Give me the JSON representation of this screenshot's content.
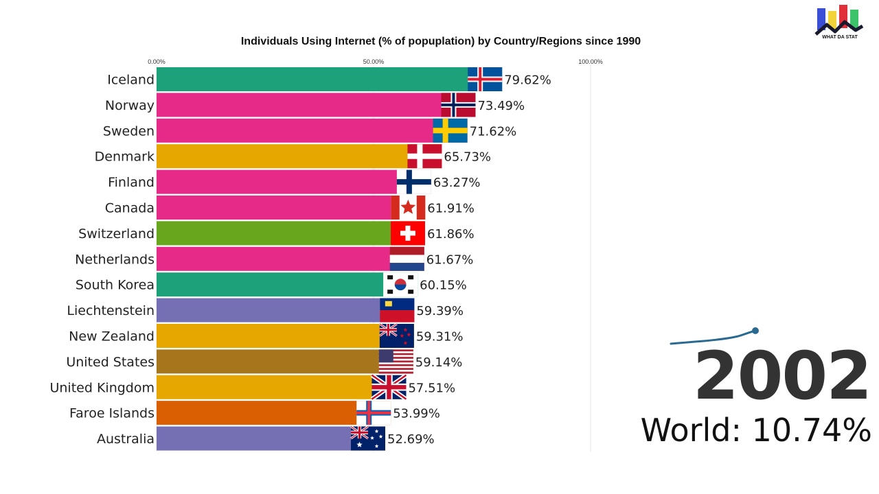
{
  "chart_data": {
    "type": "bar",
    "orientation": "horizontal",
    "title": "Individuals Using Internet (% of popuplation) by Country/Regions since 1990",
    "xlim": [
      0,
      100
    ],
    "xticks": [
      "0.00%",
      "50.00%",
      "100.00%"
    ],
    "categories": [
      "Iceland",
      "Norway",
      "Sweden",
      "Denmark",
      "Finland",
      "Canada",
      "Switzerland",
      "Netherlands",
      "South Korea",
      "Liechtenstein",
      "New Zealand",
      "United States",
      "United Kingdom",
      "Faroe Islands",
      "Australia"
    ],
    "values": [
      79.62,
      73.49,
      71.62,
      65.73,
      63.27,
      61.91,
      61.86,
      61.67,
      60.15,
      59.39,
      59.31,
      59.14,
      57.51,
      53.99,
      52.69
    ],
    "value_labels": [
      "79.62%",
      "73.49%",
      "71.62%",
      "65.73%",
      "63.27%",
      "61.91%",
      "61.86%",
      "61.67%",
      "60.15%",
      "59.39%",
      "59.31%",
      "59.14%",
      "57.51%",
      "53.99%",
      "52.69%"
    ],
    "colors": [
      "#1ca17b",
      "#e62a87",
      "#e62a87",
      "#e6a800",
      "#e62a87",
      "#e62a87",
      "#67a61d",
      "#e62a87",
      "#1ca17b",
      "#7570b3",
      "#e6a800",
      "#a6761d",
      "#e6a800",
      "#d95f02",
      "#7570b3"
    ],
    "flags": [
      "iceland-flag",
      "norway-flag",
      "sweden-flag",
      "denmark-flag",
      "finland-flag",
      "canada-flag",
      "switzerland-flag",
      "netherlands-flag",
      "south-korea-flag",
      "liechtenstein-flag",
      "new-zealand-flag",
      "united-states-flag",
      "united-kingdom-flag",
      "faroe-islands-flag",
      "australia-flag"
    ],
    "grid": true
  },
  "year": "2002",
  "world_label": "World: 10.74%",
  "logo_text": "WHAT DA STAT"
}
